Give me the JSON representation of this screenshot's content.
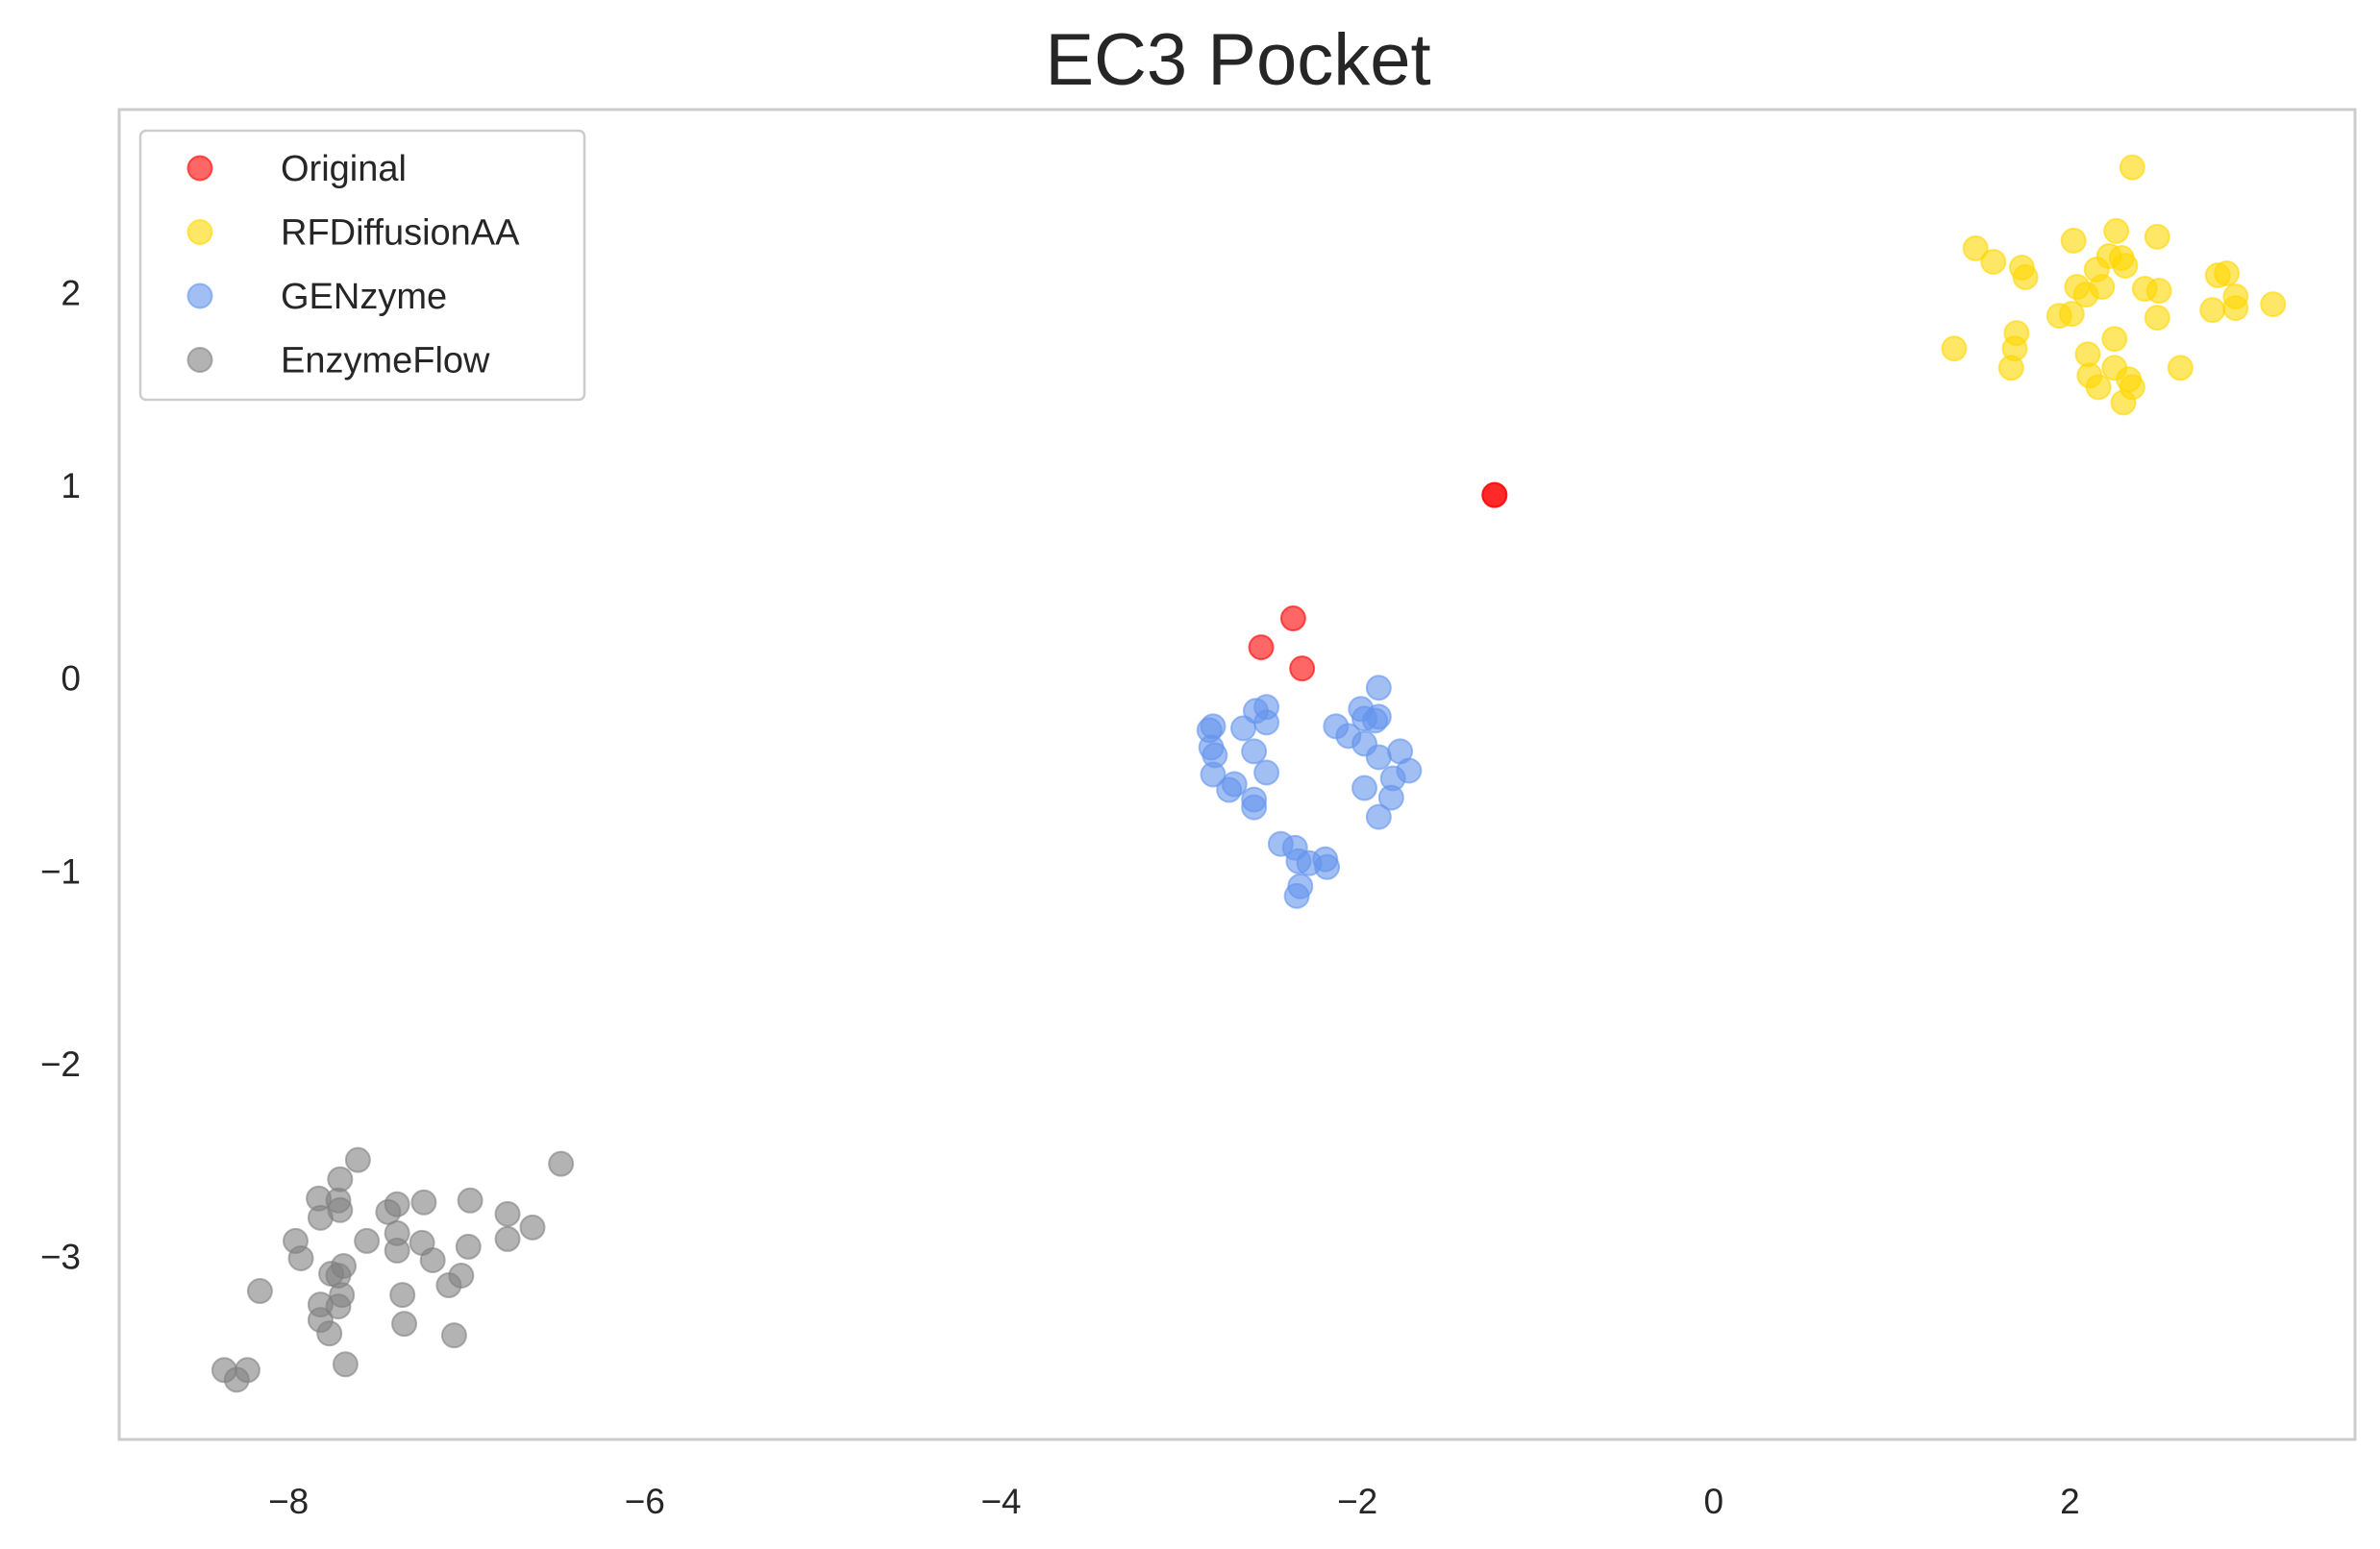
{
  "chart_data": {
    "type": "scatter",
    "title": "EC3 Pocket",
    "xlabel": "",
    "ylabel": "",
    "xlim": [
      -8.95,
      3.6
    ],
    "ylim": [
      -3.95,
      2.95
    ],
    "xticks": [
      -8,
      -6,
      -4,
      -2,
      0,
      2
    ],
    "yticks": [
      -3,
      -2,
      -1,
      0,
      1,
      2
    ],
    "xtick_labels": [
      "−8",
      "−6",
      "−4",
      "−2",
      "0",
      "2"
    ],
    "ytick_labels": [
      "−3",
      "−2",
      "−1",
      "0",
      "1",
      "2"
    ],
    "grid": false,
    "legend_position": "upper-left",
    "series": [
      {
        "name": "Original",
        "color": "#ff0000",
        "points": [
          [
            -1.23,
            0.95
          ],
          [
            -1.23,
            0.95
          ],
          [
            -2.36,
            0.31
          ],
          [
            -2.54,
            0.16
          ],
          [
            -2.31,
            0.05
          ]
        ]
      },
      {
        "name": "RFDiffusionAA",
        "color": "#ffd700",
        "points": [
          [
            2.35,
            2.65
          ],
          [
            2.26,
            2.32
          ],
          [
            2.02,
            2.27
          ],
          [
            2.49,
            2.29
          ],
          [
            1.47,
            2.23
          ],
          [
            1.57,
            2.16
          ],
          [
            1.73,
            2.13
          ],
          [
            1.75,
            2.08
          ],
          [
            2.22,
            2.19
          ],
          [
            2.29,
            2.18
          ],
          [
            2.31,
            2.14
          ],
          [
            2.15,
            2.12
          ],
          [
            2.83,
            2.09
          ],
          [
            2.88,
            2.1
          ],
          [
            2.04,
            2.03
          ],
          [
            2.18,
            2.03
          ],
          [
            2.42,
            2.02
          ],
          [
            2.5,
            2.01
          ],
          [
            2.09,
            1.99
          ],
          [
            2.93,
            1.98
          ],
          [
            3.14,
            1.94
          ],
          [
            1.94,
            1.88
          ],
          [
            2.01,
            1.89
          ],
          [
            2.49,
            1.87
          ],
          [
            2.8,
            1.91
          ],
          [
            2.93,
            1.92
          ],
          [
            1.7,
            1.79
          ],
          [
            2.25,
            1.76
          ],
          [
            1.35,
            1.71
          ],
          [
            1.69,
            1.71
          ],
          [
            2.1,
            1.68
          ],
          [
            1.67,
            1.61
          ],
          [
            2.25,
            1.61
          ],
          [
            2.11,
            1.57
          ],
          [
            2.33,
            1.55
          ],
          [
            2.62,
            1.61
          ],
          [
            2.16,
            1.51
          ],
          [
            2.35,
            1.51
          ],
          [
            2.3,
            1.43
          ]
        ]
      },
      {
        "name": "GENzyme",
        "color": "#6495ed",
        "points": [
          [
            -1.88,
            -0.05
          ],
          [
            -2.51,
            -0.15
          ],
          [
            -1.98,
            -0.16
          ],
          [
            -2.57,
            -0.17
          ],
          [
            -1.88,
            -0.2
          ],
          [
            -1.96,
            -0.21
          ],
          [
            -2.51,
            -0.23
          ],
          [
            -1.9,
            -0.22
          ],
          [
            -2.12,
            -0.25
          ],
          [
            -2.81,
            -0.25
          ],
          [
            -2.83,
            -0.27
          ],
          [
            -2.64,
            -0.26
          ],
          [
            -2.05,
            -0.3
          ],
          [
            -1.96,
            -0.34
          ],
          [
            -2.82,
            -0.36
          ],
          [
            -2.58,
            -0.38
          ],
          [
            -1.76,
            -0.38
          ],
          [
            -2.8,
            -0.4
          ],
          [
            -1.88,
            -0.41
          ],
          [
            -1.71,
            -0.48
          ],
          [
            -2.51,
            -0.49
          ],
          [
            -2.81,
            -0.5
          ],
          [
            -1.8,
            -0.52
          ],
          [
            -2.69,
            -0.55
          ],
          [
            -2.72,
            -0.58
          ],
          [
            -1.96,
            -0.57
          ],
          [
            -1.81,
            -0.62
          ],
          [
            -2.58,
            -0.63
          ],
          [
            -2.58,
            -0.67
          ],
          [
            -1.88,
            -0.72
          ],
          [
            -2.43,
            -0.86
          ],
          [
            -2.35,
            -0.88
          ],
          [
            -2.18,
            -0.94
          ],
          [
            -2.33,
            -0.95
          ],
          [
            -2.27,
            -0.96
          ],
          [
            -2.17,
            -0.98
          ],
          [
            -2.32,
            -1.08
          ],
          [
            -2.34,
            -1.13
          ]
        ]
      },
      {
        "name": "EnzymeFlow",
        "color": "#808080",
        "points": [
          [
            -7.61,
            -2.5
          ],
          [
            -6.47,
            -2.52
          ],
          [
            -7.71,
            -2.6
          ],
          [
            -7.83,
            -2.7
          ],
          [
            -7.72,
            -2.71
          ],
          [
            -7.24,
            -2.72
          ],
          [
            -6.98,
            -2.71
          ],
          [
            -7.71,
            -2.76
          ],
          [
            -7.39,
            -2.73
          ],
          [
            -7.44,
            -2.77
          ],
          [
            -7.82,
            -2.8
          ],
          [
            -6.77,
            -2.78
          ],
          [
            -6.63,
            -2.85
          ],
          [
            -7.39,
            -2.88
          ],
          [
            -7.56,
            -2.92
          ],
          [
            -7.96,
            -2.92
          ],
          [
            -7.25,
            -2.93
          ],
          [
            -6.77,
            -2.91
          ],
          [
            -6.99,
            -2.95
          ],
          [
            -7.39,
            -2.97
          ],
          [
            -7.93,
            -3.01
          ],
          [
            -7.19,
            -3.02
          ],
          [
            -7.69,
            -3.05
          ],
          [
            -7.76,
            -3.09
          ],
          [
            -7.72,
            -3.1
          ],
          [
            -7.03,
            -3.1
          ],
          [
            -7.1,
            -3.15
          ],
          [
            -8.16,
            -3.18
          ],
          [
            -7.7,
            -3.2
          ],
          [
            -7.36,
            -3.2
          ],
          [
            -7.82,
            -3.25
          ],
          [
            -7.72,
            -3.26
          ],
          [
            -7.82,
            -3.33
          ],
          [
            -7.35,
            -3.35
          ],
          [
            -7.77,
            -3.4
          ],
          [
            -7.07,
            -3.41
          ],
          [
            -7.68,
            -3.56
          ],
          [
            -8.36,
            -3.59
          ],
          [
            -8.23,
            -3.59
          ],
          [
            -8.29,
            -3.64
          ]
        ]
      }
    ]
  }
}
